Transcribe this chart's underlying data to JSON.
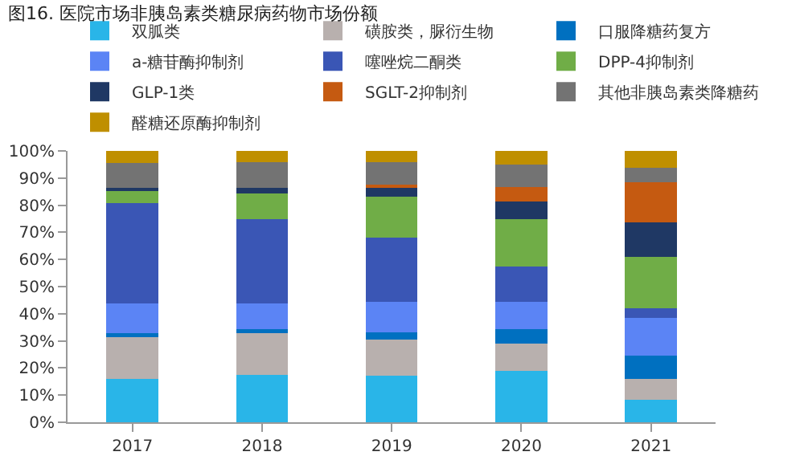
{
  "chart_data": {
    "type": "bar",
    "stacked": true,
    "title": "图16. 医院市场非胰岛素类糖尿病药物市场份额",
    "categories": [
      "2017",
      "2018",
      "2019",
      "2020",
      "2021"
    ],
    "series": [
      {
        "name": "双胍类",
        "color": "#29b5e8",
        "values": [
          16,
          17.5,
          17.3,
          18.9,
          8.3
        ]
      },
      {
        "name": "磺胺类，脲衍生物",
        "color": "#b8b0ae",
        "values": [
          15.7,
          15.2,
          13.2,
          10.2,
          7.6
        ]
      },
      {
        "name": "口服降糖药复方",
        "color": "#0070c0",
        "values": [
          1,
          1.6,
          2.6,
          5.2,
          8.7
        ]
      },
      {
        "name": "a-糖苷酶抑制剂",
        "color": "#5b84f5",
        "values": [
          11.2,
          9.6,
          11.2,
          10,
          14
        ]
      },
      {
        "name": "噻唑烷二酮类",
        "color": "#3a56b5",
        "values": [
          37,
          30.9,
          23.7,
          13.2,
          3.3
        ]
      },
      {
        "name": "DPP-4抑制剂",
        "color": "#70ad47",
        "values": [
          4.5,
          9.6,
          15,
          17.5,
          19.1
        ]
      },
      {
        "name": "GLP-1类",
        "color": "#1f3864",
        "values": [
          1,
          2,
          3.6,
          6.3,
          12.8
        ]
      },
      {
        "name": "SGLT-2抑制剂",
        "color": "#c55a11",
        "values": [
          0,
          0,
          1,
          5.3,
          14.6
        ]
      },
      {
        "name": "其他非胰岛素类降糖药",
        "color": "#737373",
        "values": [
          9.1,
          9.5,
          8.3,
          8.5,
          5.3
        ]
      },
      {
        "name": "醛糖还原酶抑制剂",
        "color": "#bf8f00",
        "values": [
          4.5,
          4.1,
          4.1,
          4.9,
          6.3
        ]
      }
    ],
    "ylim": [
      0,
      100
    ],
    "yticks": [
      {
        "value": 0,
        "label": "0%"
      },
      {
        "value": 10,
        "label": "10%"
      },
      {
        "value": 20,
        "label": "20%"
      },
      {
        "value": 30,
        "label": "30%"
      },
      {
        "value": 40,
        "label": "40%"
      },
      {
        "value": 50,
        "label": "50%"
      },
      {
        "value": 60,
        "label": "60%"
      },
      {
        "value": 70,
        "label": "70%"
      },
      {
        "value": 80,
        "label": "80%"
      },
      {
        "value": 90,
        "label": "90%"
      },
      {
        "value": 100,
        "label": "100%"
      }
    ],
    "legend": "top"
  }
}
